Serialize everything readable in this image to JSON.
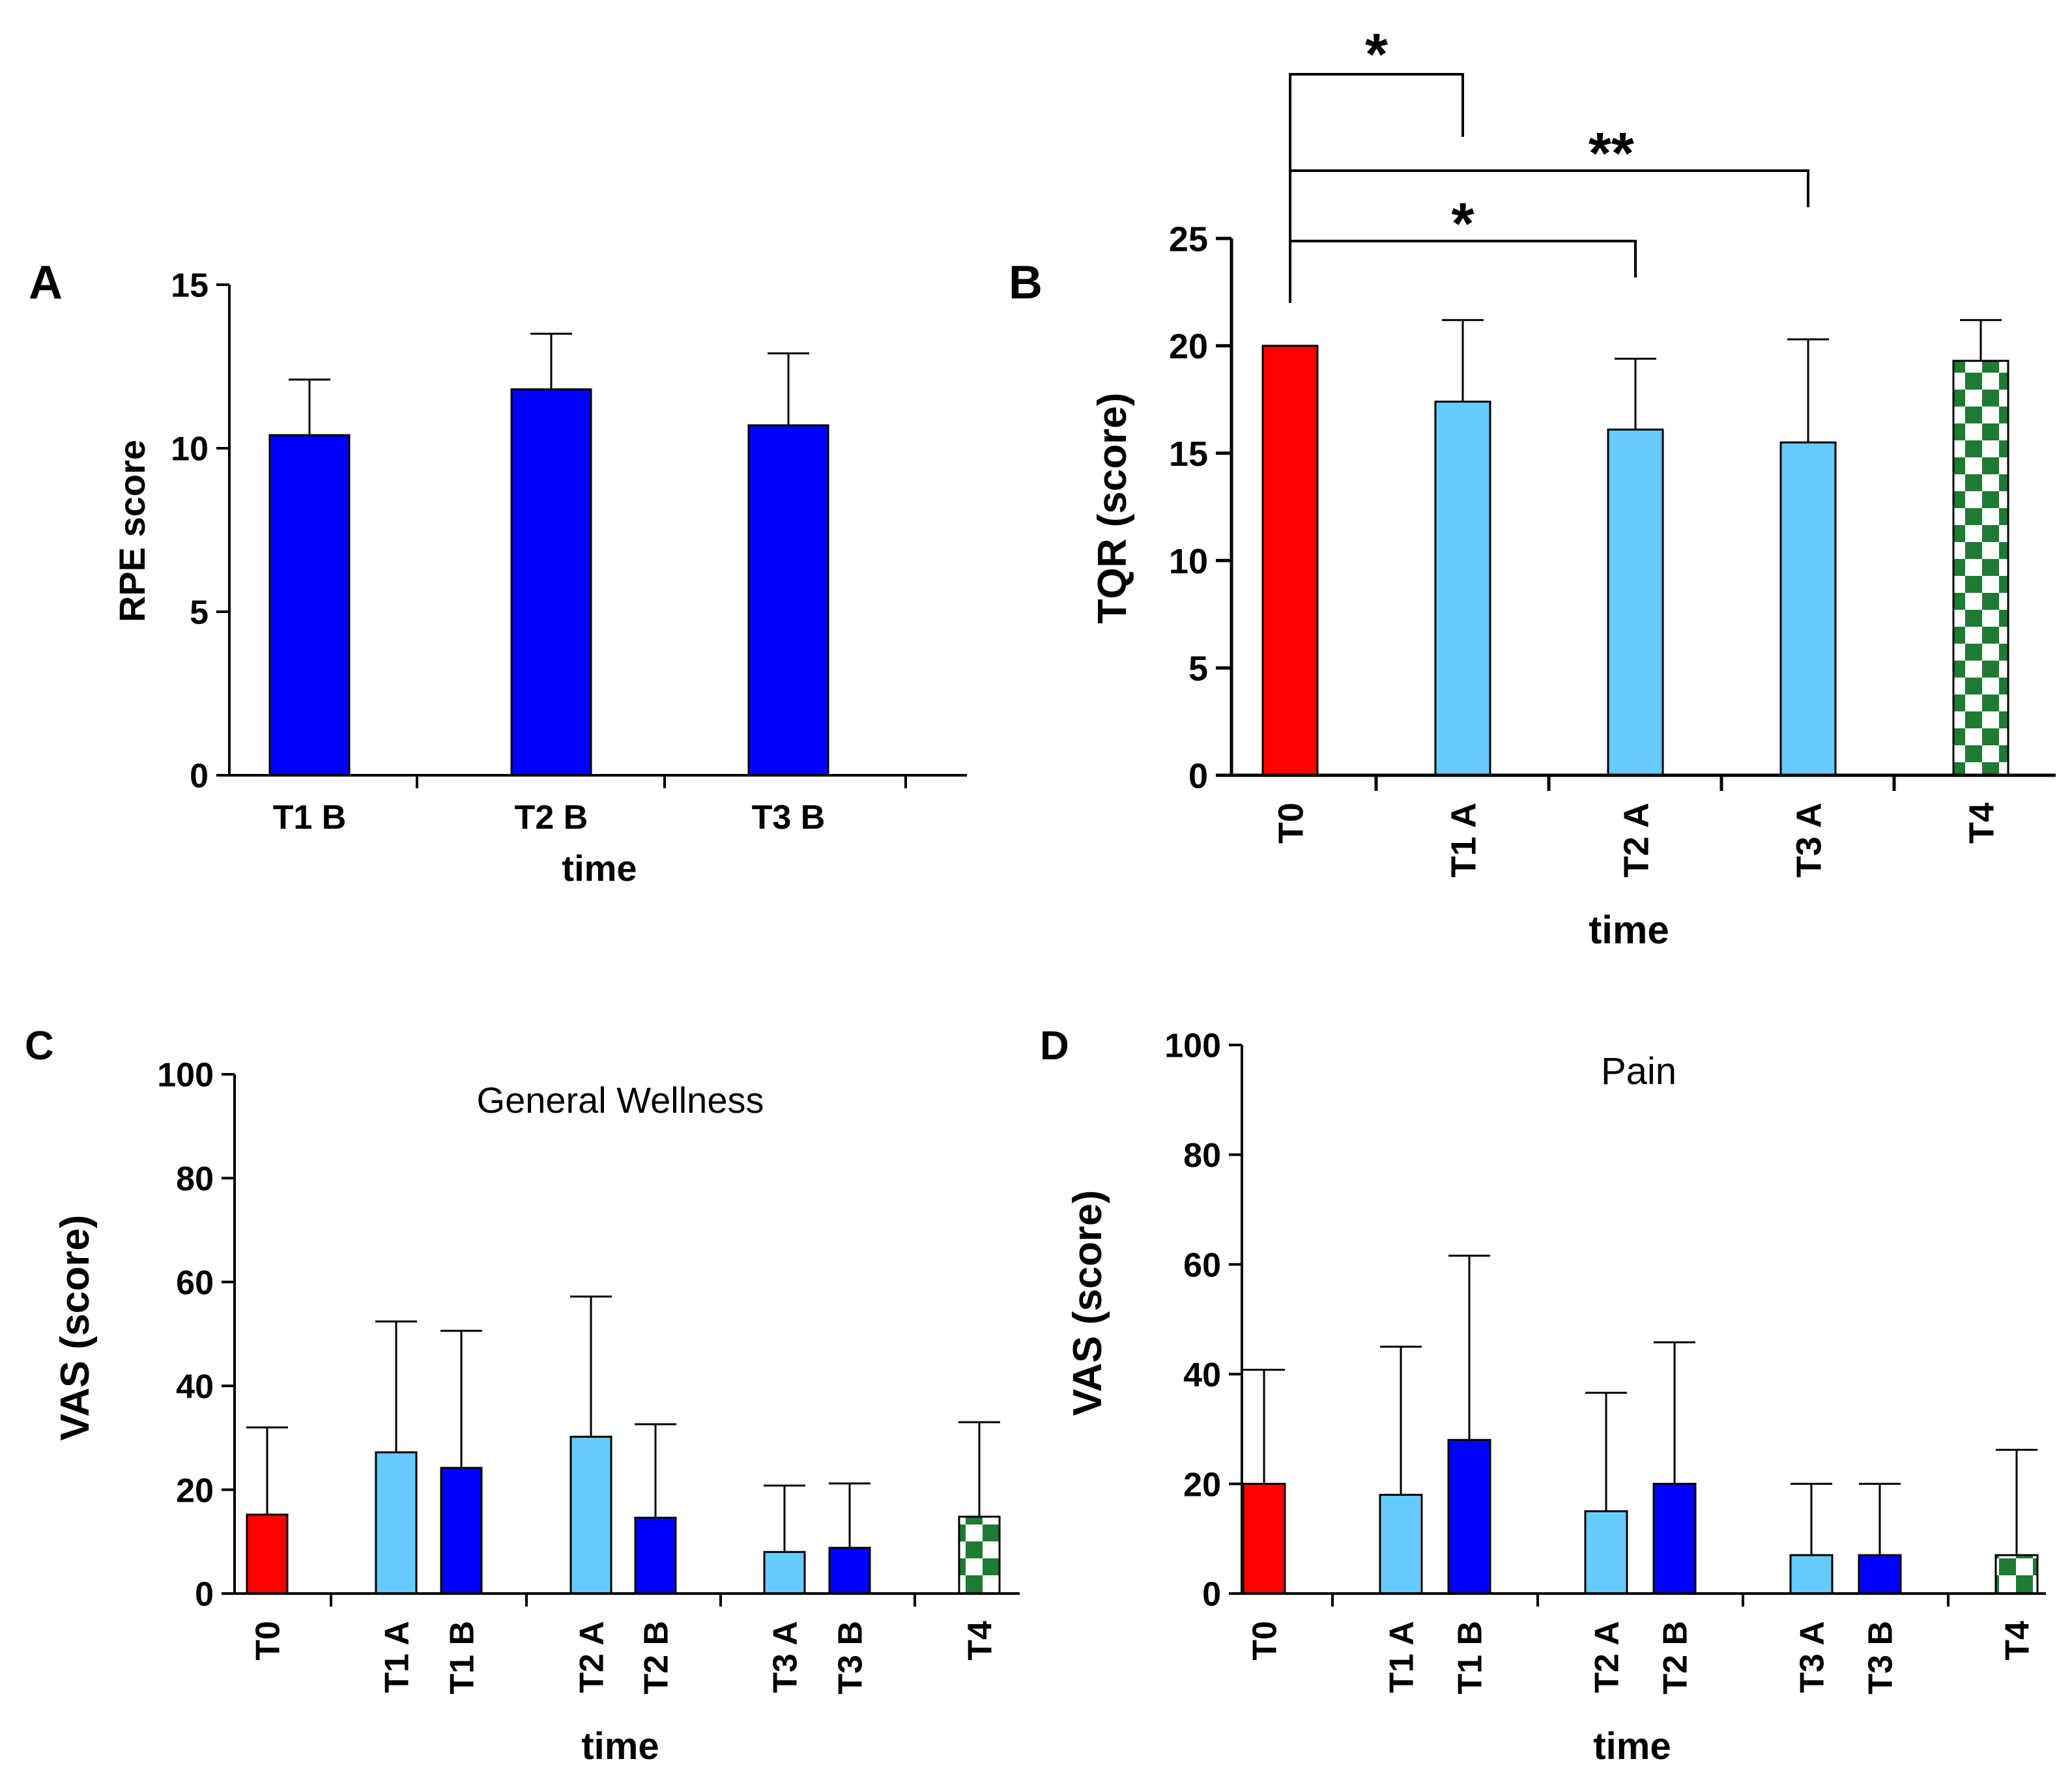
{
  "chart_data": [
    {
      "id": "A",
      "panel_label": "A",
      "type": "bar",
      "title": "",
      "xlabel": "time",
      "ylabel": "RPE score",
      "ylim": [
        0,
        15
      ],
      "yticks": [
        0,
        5,
        10,
        15
      ],
      "x_tick_labels_rotated": false,
      "categories": [
        "T1 B",
        "T2 B",
        "T3 B"
      ],
      "values": [
        10.4,
        11.8,
        10.7
      ],
      "error_upper": [
        12.1,
        13.5,
        12.9
      ],
      "bar_fills": [
        "blue",
        "blue",
        "blue"
      ],
      "significance": []
    },
    {
      "id": "B",
      "panel_label": "B",
      "type": "bar",
      "title": "",
      "xlabel": "time",
      "ylabel": "TQR (score)",
      "ylim": [
        0,
        25
      ],
      "yticks": [
        0,
        5,
        10,
        15,
        20,
        25
      ],
      "x_tick_labels_rotated": true,
      "categories": [
        "T0",
        "T1 A",
        "T2 A",
        "T3 A",
        "T4"
      ],
      "values": [
        20.0,
        17.4,
        16.1,
        15.5,
        19.3
      ],
      "error_upper": [
        20.0,
        21.2,
        19.4,
        20.3,
        21.2
      ],
      "bar_fills": [
        "red",
        "lightblue",
        "lightblue",
        "lightblue",
        "checker"
      ],
      "significance": [
        {
          "from": "T0",
          "to": "T1 A",
          "label": "*"
        },
        {
          "from": "T0",
          "to": "T3 A",
          "label": "**"
        },
        {
          "from": "T0",
          "to": "T2 A",
          "label": "*"
        }
      ]
    },
    {
      "id": "C",
      "panel_label": "C",
      "type": "bar",
      "title": "General Wellness",
      "xlabel": "time",
      "ylabel": "VAS (score)",
      "ylim": [
        0,
        100
      ],
      "yticks": [
        0,
        20,
        40,
        60,
        80,
        100
      ],
      "x_tick_labels_rotated": true,
      "categories": [
        "T0",
        "T1 A",
        "T1 B",
        "T2 A",
        "T2 B",
        "T3 A",
        "T3 B",
        "T4"
      ],
      "values": [
        15.2,
        27.2,
        24.2,
        30.2,
        14.6,
        8.0,
        8.8,
        14.8
      ],
      "error_upper": [
        32.0,
        52.4,
        50.6,
        57.2,
        32.6,
        20.8,
        21.2,
        33.0
      ],
      "bar_fills": [
        "red",
        "lightblue",
        "blue",
        "lightblue",
        "blue",
        "lightblue",
        "blue",
        "checker"
      ],
      "significance": []
    },
    {
      "id": "D",
      "panel_label": "D",
      "type": "bar",
      "title": "Pain",
      "xlabel": "time",
      "ylabel": "VAS (score)",
      "ylim": [
        0,
        100
      ],
      "yticks": [
        0,
        20,
        40,
        60,
        80,
        100
      ],
      "x_tick_labels_rotated": true,
      "categories": [
        "T0",
        "T1 A",
        "T1 B",
        "T2 A",
        "T2 B",
        "T3 A",
        "T3 B",
        "T4"
      ],
      "values": [
        20.0,
        18.0,
        28.0,
        15.0,
        20.0,
        7.0,
        7.0,
        7.0
      ],
      "error_upper": [
        40.8,
        45.0,
        61.6,
        36.6,
        45.8,
        20.0,
        20.0,
        26.2
      ],
      "bar_fills": [
        "red",
        "lightblue",
        "blue",
        "lightblue",
        "blue",
        "lightblue",
        "blue",
        "checker"
      ],
      "significance": []
    }
  ],
  "colors": {
    "red": "#ff0000",
    "blue": "#0000ff",
    "lightblue": "#66ccff",
    "checker_green": "#1e7b32",
    "axis": "#000000"
  }
}
